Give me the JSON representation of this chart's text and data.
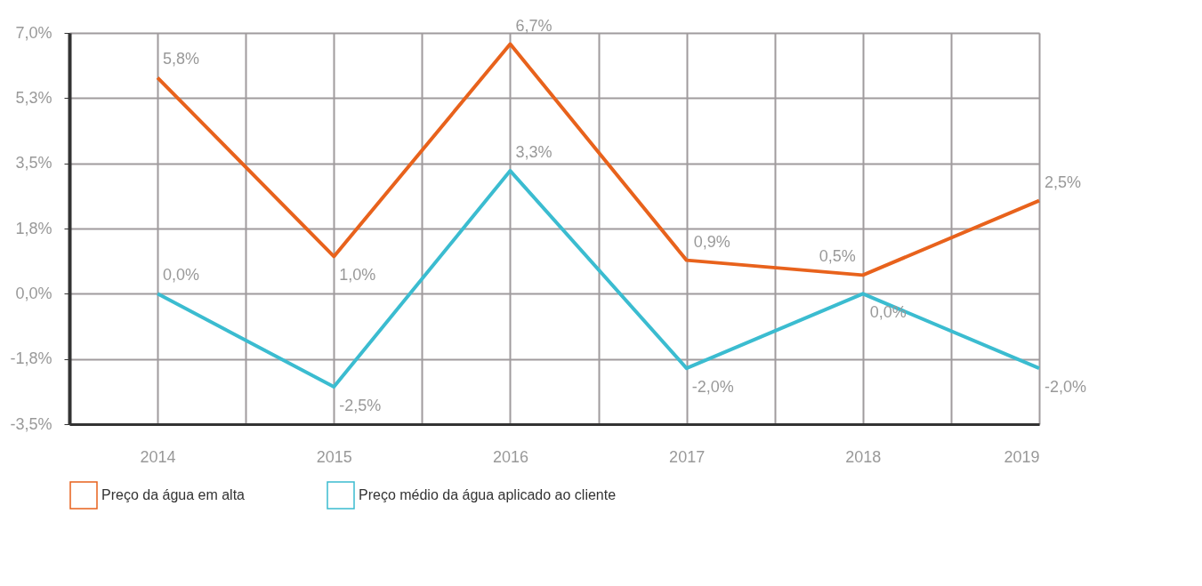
{
  "chart_data": {
    "type": "line",
    "x": [
      2014,
      2015,
      2016,
      2017,
      2018,
      2019
    ],
    "xlim": [
      2013.5,
      2019
    ],
    "xticks": [
      {
        "value": 2013.5,
        "label": null
      },
      2014,
      {
        "value": 2014.5,
        "label": null
      },
      2015,
      {
        "value": 2015.5,
        "label": null
      },
      2016,
      {
        "value": 2016.5,
        "label": null
      },
      2017,
      {
        "value": 2017.5,
        "label": null
      },
      2018,
      {
        "value": 2018.5,
        "label": null
      },
      2019
    ],
    "ylim": [
      -3.5,
      7.0
    ],
    "yticks": [
      {
        "value": -3.5,
        "label": "-3,5%"
      },
      {
        "value": -1.75,
        "label": "-1,8%"
      },
      {
        "value": 0,
        "label": "0,0%"
      },
      {
        "value": 1.75,
        "label": "1,8%"
      },
      {
        "value": 3.5,
        "label": "3,5%"
      },
      {
        "value": 5.25,
        "label": "5,3%"
      },
      {
        "value": 7.0,
        "label": "7,0%"
      }
    ],
    "series": [
      {
        "name": "Preço da água em alta",
        "color": "#e8621c",
        "values": [
          5.8,
          1.0,
          6.7,
          0.9,
          0.5,
          2.5
        ],
        "value_labels": [
          "5,8%",
          "1,0%",
          "6,7%",
          "0,9%",
          "0,5%",
          "2,5%"
        ]
      },
      {
        "name": "Preço médio da água  aplicado ao cliente",
        "color": "#3bbcd0",
        "values": [
          0.0,
          -2.5,
          3.3,
          -2.0,
          0.0,
          -2.0
        ],
        "value_labels": [
          "0,0%",
          "-2,5%",
          "3,3%",
          "-2,0%",
          "0,0%",
          "-2,0%"
        ]
      }
    ],
    "grid": true,
    "legend": "bottom",
    "marker": "none",
    "line_style": "solid"
  }
}
